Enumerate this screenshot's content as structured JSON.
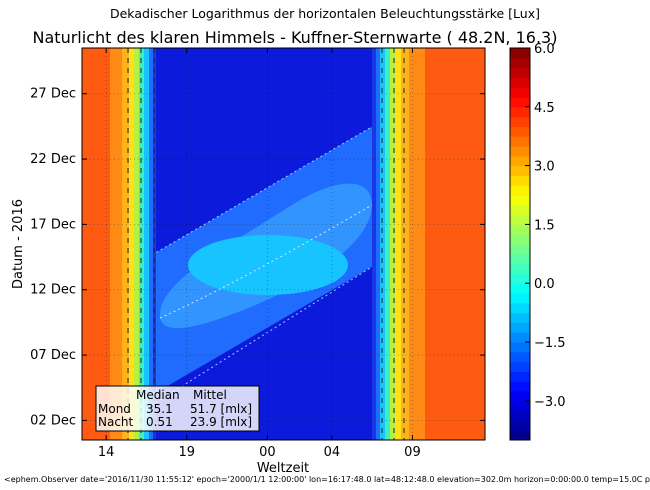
{
  "chart_data": {
    "type": "heatmap",
    "suptitle": "Dekadischer Logarithmus der horizontalen Beleuchtungsstärke [Lux]",
    "title": "Naturlicht des klaren Himmels - Kuffner-Sternwarte ( 48.2N, 16.3)",
    "xlabel": "Weltzeit",
    "ylabel": "Datum - 2016",
    "x_ticks": [
      {
        "label": "14",
        "hours": 14
      },
      {
        "label": "19",
        "hours": 19
      },
      {
        "label": "00",
        "hours": 24
      },
      {
        "label": "04",
        "hours": 28
      },
      {
        "label": "09",
        "hours": 33
      }
    ],
    "x_range_hours": [
      12.5,
      37.5
    ],
    "y_ticks": [
      {
        "label": "02 Dec",
        "day": 2
      },
      {
        "label": "07 Dec",
        "day": 7
      },
      {
        "label": "12 Dec",
        "day": 12
      },
      {
        "label": "17 Dec",
        "day": 17
      },
      {
        "label": "22 Dec",
        "day": 22
      },
      {
        "label": "27 Dec",
        "day": 27
      }
    ],
    "y_range_days": [
      0.5,
      30.5
    ],
    "colorbar": {
      "min": -4.0,
      "max": 6.0,
      "step": 0.25,
      "tick_values": [
        6.0,
        4.5,
        3.0,
        1.5,
        0.0,
        -1.5,
        -3.0
      ],
      "tick_labels": [
        "6.0",
        "4.5",
        "3.0",
        "1.5",
        "0.0",
        "−1.5",
        "−3.0"
      ]
    },
    "regions_log_lux": {
      "day": 4.3,
      "civil_twilight": [
        1.0,
        3.5
      ],
      "night_no_moon": -3.5,
      "moonlit_outer": -2.3,
      "moonlit_core": -1.2
    },
    "stats_table": {
      "headers": [
        "Median",
        "Mittel"
      ],
      "rows": [
        {
          "label": "Mond",
          "median": "35.1",
          "mittel": "51.7 [mlx]"
        },
        {
          "label": "Nacht",
          "median": "0.51",
          "mittel": "23.9 [mlx]"
        }
      ]
    }
  },
  "footer_text": "<ephem.Observer date='2016/11/30 11:55:12' epoch='2000/1/1 12:00:00' lon=16:17:48.0 lat=48:12:48.0 elevation=302.0m horizon=0:00:00.0 temp=15.0C pressu",
  "colors": {
    "day": "#ff5a12",
    "night": "#0c1adc",
    "moon_outer": "#1f6cff",
    "moon_mid": "#3295ff",
    "moon_core": "#17c4ff"
  }
}
